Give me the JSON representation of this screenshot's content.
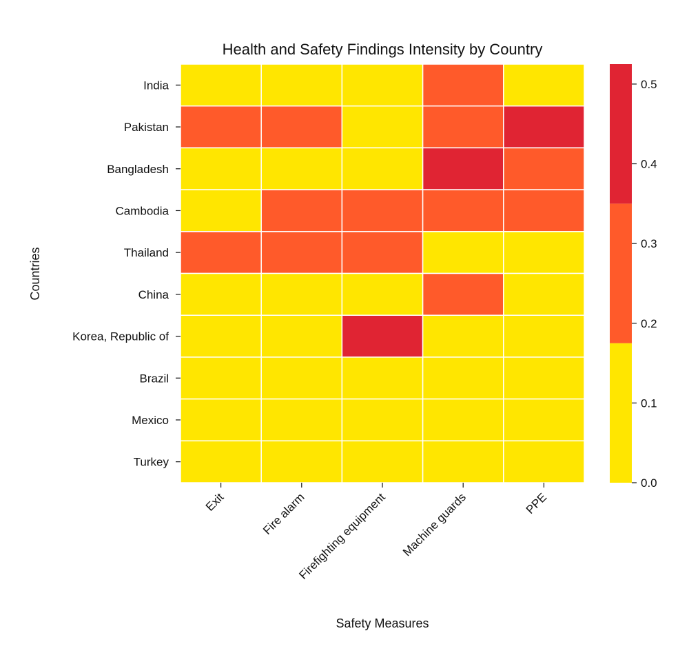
{
  "chart_data": {
    "type": "heatmap",
    "title": "Health and Safety Findings Intensity by Country",
    "xlabel": "Safety Measures",
    "ylabel": "Countries",
    "x_categories": [
      "Exit",
      "Fire alarm",
      "Firefighting equipment",
      "Machine guards",
      "PPE"
    ],
    "y_categories": [
      "India",
      "Pakistan",
      "Bangladesh",
      "Cambodia",
      "Thailand",
      "China",
      "Korea, Republic of",
      "Brazil",
      "Mexico",
      "Turkey"
    ],
    "values": [
      [
        0.05,
        0.05,
        0.05,
        0.25,
        0.05
      ],
      [
        0.25,
        0.25,
        0.05,
        0.25,
        0.45
      ],
      [
        0.05,
        0.05,
        0.05,
        0.45,
        0.25
      ],
      [
        0.05,
        0.25,
        0.25,
        0.25,
        0.25
      ],
      [
        0.25,
        0.25,
        0.25,
        0.05,
        0.05
      ],
      [
        0.05,
        0.05,
        0.05,
        0.25,
        0.05
      ],
      [
        0.05,
        0.05,
        0.45,
        0.05,
        0.05
      ],
      [
        0.05,
        0.05,
        0.05,
        0.05,
        0.05
      ],
      [
        0.05,
        0.05,
        0.05,
        0.05,
        0.05
      ],
      [
        0.05,
        0.05,
        0.05,
        0.05,
        0.05
      ]
    ],
    "colorbar": {
      "range": [
        0,
        0.525
      ],
      "ticks": [
        "0.0",
        "0.1",
        "0.2",
        "0.3",
        "0.4",
        "0.5"
      ],
      "bins": [
        {
          "from": 0,
          "to": 0.175,
          "color": "#FFE600"
        },
        {
          "from": 0.175,
          "to": 0.35,
          "color": "#FF5A2A"
        },
        {
          "from": 0.35,
          "to": 0.525,
          "color": "#E02433"
        }
      ]
    },
    "grid": false,
    "cell_border_color": "#FFFFFF"
  }
}
